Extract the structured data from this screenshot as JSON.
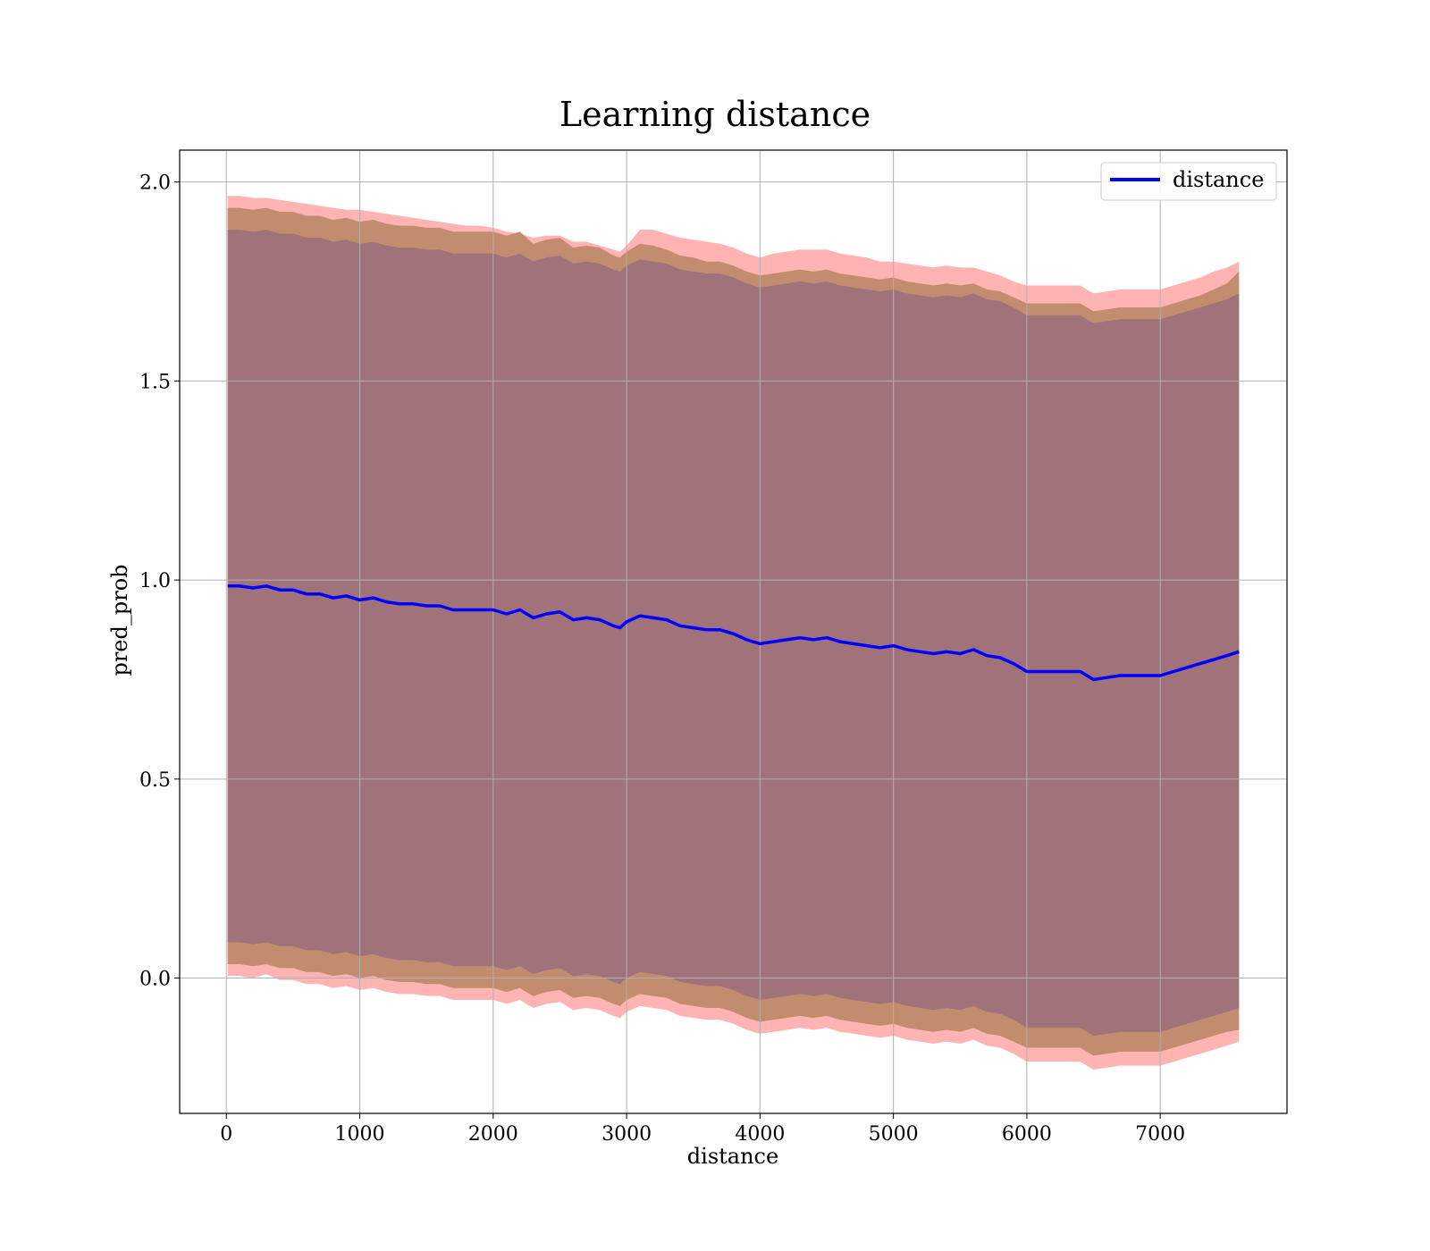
{
  "chart_data": {
    "type": "line",
    "title": "Learning distance",
    "xlabel": "distance",
    "ylabel": "pred_prob",
    "xlim": [
      -350,
      7950
    ],
    "ylim": [
      -0.34,
      2.08
    ],
    "xticks": [
      0,
      1000,
      2000,
      3000,
      4000,
      5000,
      6000,
      7000
    ],
    "yticks": [
      0.0,
      0.5,
      1.0,
      1.5,
      2.0
    ],
    "xtick_labels": [
      "0",
      "1000",
      "2000",
      "3000",
      "4000",
      "5000",
      "6000",
      "7000"
    ],
    "ytick_labels": [
      "0.0",
      "0.5",
      "1.0",
      "1.5",
      "2.0"
    ],
    "grid": true,
    "legend_position": "top-right",
    "series": [
      {
        "name": "distance",
        "color": "#0000ff",
        "x": [
          10,
          100,
          200,
          300,
          400,
          500,
          600,
          700,
          800,
          900,
          1000,
          1100,
          1200,
          1300,
          1400,
          1500,
          1600,
          1700,
          1800,
          1900,
          2000,
          2100,
          2200,
          2300,
          2400,
          2500,
          2600,
          2700,
          2800,
          2900,
          2950,
          3000,
          3100,
          3200,
          3300,
          3400,
          3500,
          3600,
          3700,
          3800,
          3900,
          4000,
          4100,
          4200,
          4300,
          4400,
          4500,
          4600,
          4700,
          4800,
          4900,
          5000,
          5100,
          5200,
          5300,
          5400,
          5500,
          5600,
          5700,
          5800,
          5900,
          6000,
          6100,
          6200,
          6300,
          6400,
          6500,
          6600,
          6700,
          6800,
          6900,
          7000,
          7100,
          7200,
          7300,
          7400,
          7500,
          7590
        ],
        "values": [
          0.985,
          0.985,
          0.98,
          0.985,
          0.975,
          0.975,
          0.965,
          0.965,
          0.955,
          0.96,
          0.95,
          0.955,
          0.945,
          0.94,
          0.94,
          0.935,
          0.935,
          0.925,
          0.925,
          0.925,
          0.925,
          0.915,
          0.925,
          0.905,
          0.915,
          0.92,
          0.9,
          0.905,
          0.9,
          0.885,
          0.88,
          0.895,
          0.91,
          0.905,
          0.9,
          0.885,
          0.88,
          0.875,
          0.875,
          0.865,
          0.85,
          0.84,
          0.845,
          0.85,
          0.855,
          0.85,
          0.855,
          0.845,
          0.84,
          0.835,
          0.83,
          0.835,
          0.825,
          0.82,
          0.815,
          0.82,
          0.815,
          0.825,
          0.81,
          0.805,
          0.79,
          0.77,
          0.77,
          0.77,
          0.77,
          0.77,
          0.75,
          0.755,
          0.76,
          0.76,
          0.76,
          0.76,
          0.77,
          0.78,
          0.79,
          0.8,
          0.81,
          0.82
        ]
      }
    ],
    "bands": [
      {
        "color": "#ff9999",
        "opacity": 0.75,
        "upper": [
          1.965,
          1.965,
          1.96,
          1.96,
          1.955,
          1.95,
          1.945,
          1.94,
          1.935,
          1.93,
          1.93,
          1.925,
          1.92,
          1.915,
          1.91,
          1.905,
          1.9,
          1.895,
          1.89,
          1.89,
          1.885,
          1.875,
          1.87,
          1.86,
          1.865,
          1.865,
          1.85,
          1.85,
          1.84,
          1.83,
          1.825,
          1.84,
          1.88,
          1.88,
          1.87,
          1.86,
          1.855,
          1.85,
          1.845,
          1.835,
          1.82,
          1.81,
          1.82,
          1.825,
          1.83,
          1.83,
          1.83,
          1.82,
          1.815,
          1.81,
          1.8,
          1.8,
          1.795,
          1.79,
          1.785,
          1.79,
          1.785,
          1.785,
          1.775,
          1.765,
          1.75,
          1.74,
          1.74,
          1.74,
          1.74,
          1.74,
          1.72,
          1.725,
          1.73,
          1.73,
          1.73,
          1.73,
          1.74,
          1.75,
          1.76,
          1.775,
          1.785,
          1.8
        ],
        "lower": [
          0.005,
          0.005,
          0.0,
          0.01,
          -0.005,
          -0.005,
          -0.015,
          -0.015,
          -0.025,
          -0.02,
          -0.03,
          -0.025,
          -0.035,
          -0.04,
          -0.04,
          -0.045,
          -0.045,
          -0.055,
          -0.055,
          -0.055,
          -0.055,
          -0.065,
          -0.055,
          -0.075,
          -0.065,
          -0.06,
          -0.08,
          -0.075,
          -0.08,
          -0.095,
          -0.1,
          -0.085,
          -0.07,
          -0.075,
          -0.08,
          -0.095,
          -0.1,
          -0.105,
          -0.105,
          -0.115,
          -0.13,
          -0.14,
          -0.135,
          -0.13,
          -0.125,
          -0.13,
          -0.125,
          -0.135,
          -0.14,
          -0.145,
          -0.15,
          -0.145,
          -0.155,
          -0.16,
          -0.165,
          -0.16,
          -0.165,
          -0.155,
          -0.17,
          -0.175,
          -0.19,
          -0.21,
          -0.21,
          -0.21,
          -0.21,
          -0.21,
          -0.23,
          -0.225,
          -0.22,
          -0.22,
          -0.22,
          -0.22,
          -0.21,
          -0.2,
          -0.19,
          -0.18,
          -0.17,
          -0.16
        ]
      },
      {
        "color": "#bf8a6a",
        "opacity": 0.95,
        "upper": [
          1.935,
          1.935,
          1.93,
          1.935,
          1.925,
          1.925,
          1.915,
          1.915,
          1.905,
          1.91,
          1.9,
          1.905,
          1.895,
          1.89,
          1.89,
          1.885,
          1.885,
          1.875,
          1.875,
          1.875,
          1.875,
          1.865,
          1.875,
          1.845,
          1.855,
          1.86,
          1.835,
          1.84,
          1.835,
          1.815,
          1.81,
          1.825,
          1.845,
          1.84,
          1.83,
          1.815,
          1.81,
          1.8,
          1.8,
          1.79,
          1.775,
          1.765,
          1.77,
          1.775,
          1.78,
          1.775,
          1.78,
          1.77,
          1.765,
          1.76,
          1.755,
          1.76,
          1.75,
          1.745,
          1.74,
          1.745,
          1.74,
          1.745,
          1.73,
          1.725,
          1.71,
          1.695,
          1.695,
          1.695,
          1.695,
          1.695,
          1.675,
          1.68,
          1.685,
          1.685,
          1.685,
          1.685,
          1.695,
          1.705,
          1.715,
          1.73,
          1.745,
          1.775
        ],
        "lower": [
          0.035,
          0.035,
          0.03,
          0.035,
          0.025,
          0.025,
          0.015,
          0.015,
          0.005,
          0.01,
          0.0,
          0.005,
          -0.005,
          -0.01,
          -0.01,
          -0.015,
          -0.015,
          -0.025,
          -0.025,
          -0.025,
          -0.025,
          -0.035,
          -0.025,
          -0.045,
          -0.035,
          -0.03,
          -0.05,
          -0.045,
          -0.05,
          -0.065,
          -0.07,
          -0.055,
          -0.04,
          -0.045,
          -0.05,
          -0.065,
          -0.07,
          -0.075,
          -0.075,
          -0.085,
          -0.1,
          -0.11,
          -0.105,
          -0.1,
          -0.095,
          -0.1,
          -0.095,
          -0.105,
          -0.11,
          -0.115,
          -0.12,
          -0.115,
          -0.125,
          -0.13,
          -0.135,
          -0.13,
          -0.135,
          -0.125,
          -0.14,
          -0.145,
          -0.16,
          -0.175,
          -0.175,
          -0.175,
          -0.175,
          -0.175,
          -0.195,
          -0.19,
          -0.185,
          -0.185,
          -0.185,
          -0.185,
          -0.175,
          -0.165,
          -0.155,
          -0.145,
          -0.135,
          -0.13
        ]
      },
      {
        "color": "#a0727a",
        "opacity": 1.0,
        "upper": [
          1.88,
          1.88,
          1.875,
          1.88,
          1.87,
          1.87,
          1.86,
          1.86,
          1.85,
          1.855,
          1.845,
          1.85,
          1.84,
          1.835,
          1.835,
          1.83,
          1.83,
          1.82,
          1.82,
          1.82,
          1.82,
          1.81,
          1.82,
          1.8,
          1.81,
          1.815,
          1.795,
          1.8,
          1.795,
          1.78,
          1.775,
          1.79,
          1.805,
          1.8,
          1.795,
          1.78,
          1.775,
          1.77,
          1.77,
          1.76,
          1.745,
          1.735,
          1.74,
          1.745,
          1.75,
          1.745,
          1.75,
          1.74,
          1.735,
          1.73,
          1.725,
          1.73,
          1.72,
          1.715,
          1.71,
          1.715,
          1.71,
          1.72,
          1.705,
          1.7,
          1.685,
          1.665,
          1.665,
          1.665,
          1.665,
          1.665,
          1.645,
          1.65,
          1.655,
          1.655,
          1.655,
          1.655,
          1.665,
          1.675,
          1.685,
          1.695,
          1.705,
          1.72
        ],
        "lower": [
          0.09,
          0.09,
          0.085,
          0.09,
          0.08,
          0.08,
          0.07,
          0.07,
          0.06,
          0.065,
          0.055,
          0.06,
          0.05,
          0.045,
          0.045,
          0.04,
          0.04,
          0.03,
          0.03,
          0.03,
          0.03,
          0.02,
          0.03,
          0.01,
          0.02,
          0.025,
          0.005,
          0.01,
          0.005,
          -0.01,
          -0.015,
          0.0,
          0.015,
          0.01,
          0.005,
          -0.01,
          -0.015,
          -0.02,
          -0.02,
          -0.03,
          -0.045,
          -0.055,
          -0.05,
          -0.045,
          -0.04,
          -0.045,
          -0.04,
          -0.05,
          -0.055,
          -0.06,
          -0.065,
          -0.06,
          -0.07,
          -0.075,
          -0.08,
          -0.075,
          -0.08,
          -0.07,
          -0.085,
          -0.09,
          -0.105,
          -0.125,
          -0.125,
          -0.125,
          -0.125,
          -0.125,
          -0.145,
          -0.14,
          -0.135,
          -0.135,
          -0.135,
          -0.135,
          -0.125,
          -0.115,
          -0.105,
          -0.095,
          -0.085,
          -0.075
        ]
      }
    ]
  }
}
